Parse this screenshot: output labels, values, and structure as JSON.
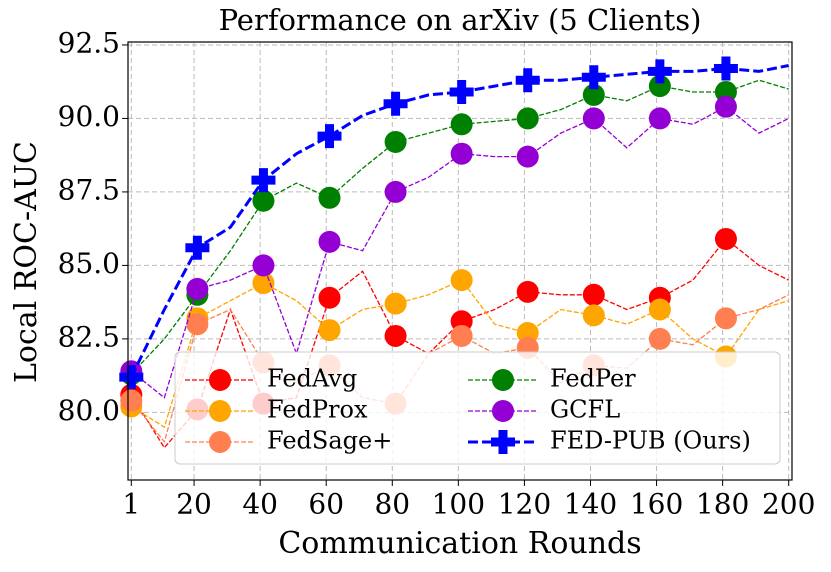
{
  "chart_data": {
    "type": "line",
    "title": "Performance on arXiv (5 Clients)",
    "x_label": "Communication Rounds",
    "y_label": "Local ROC-AUC",
    "x": [
      1,
      11,
      21,
      31,
      41,
      51,
      61,
      71,
      81,
      91,
      101,
      111,
      121,
      131,
      141,
      151,
      161,
      171,
      181,
      191,
      200
    ],
    "series": [
      {
        "name": "FedAvg",
        "color": "#ff0000",
        "marker": "circle",
        "values": [
          80.6,
          78.8,
          80.1,
          83.5,
          80.3,
          80.5,
          83.9,
          84.8,
          82.6,
          82.0,
          83.1,
          83.5,
          84.1,
          84.0,
          84.0,
          83.5,
          83.9,
          84.5,
          85.9,
          85.0,
          84.5
        ]
      },
      {
        "name": "FedProx",
        "color": "#ffa500",
        "marker": "circle",
        "values": [
          80.2,
          79.5,
          83.2,
          83.8,
          84.4,
          83.8,
          82.8,
          83.5,
          83.7,
          84.0,
          84.5,
          83.0,
          82.7,
          83.5,
          83.3,
          83.0,
          83.5,
          82.5,
          81.9,
          83.5,
          83.8
        ]
      },
      {
        "name": "FedSage+",
        "color": "#ff7f50",
        "marker": "circle",
        "values": [
          80.4,
          79.0,
          83.0,
          83.5,
          81.7,
          81.0,
          81.6,
          80.5,
          80.3,
          82.0,
          82.6,
          82.0,
          82.2,
          81.0,
          81.6,
          81.5,
          82.5,
          82.3,
          83.2,
          83.5,
          84.0
        ]
      },
      {
        "name": "FedPer",
        "color": "#008000",
        "marker": "circle",
        "values": [
          81.3,
          82.5,
          84.0,
          85.5,
          87.2,
          87.8,
          87.3,
          88.3,
          89.2,
          89.5,
          89.8,
          89.9,
          90.0,
          90.3,
          90.8,
          90.6,
          91.1,
          90.9,
          90.9,
          91.3,
          91.0
        ]
      },
      {
        "name": "GCFL",
        "color": "#9400d3",
        "marker": "circle",
        "values": [
          81.4,
          80.5,
          84.2,
          84.5,
          85.0,
          82.0,
          85.8,
          85.5,
          87.5,
          88.0,
          88.8,
          88.7,
          88.7,
          89.5,
          90.0,
          89.0,
          90.0,
          89.8,
          90.4,
          89.5,
          90.0
        ]
      },
      {
        "name": "FED-PUB (Ours)",
        "color": "#0000ff",
        "marker": "plus",
        "values": [
          81.2,
          83.5,
          85.6,
          86.3,
          87.9,
          88.8,
          89.4,
          90.1,
          90.5,
          90.8,
          90.9,
          91.1,
          91.3,
          91.3,
          91.4,
          91.5,
          91.6,
          91.6,
          91.7,
          91.6,
          91.8
        ]
      }
    ],
    "xlim": [
      0,
      201
    ],
    "xticks": [
      1,
      20,
      40,
      60,
      80,
      100,
      120,
      140,
      160,
      180,
      200
    ],
    "ylim": [
      77.7,
      92.6
    ],
    "yticks": [
      {
        "value": 80,
        "label": "80.0"
      },
      82.5,
      {
        "value": 85,
        "label": "85.0"
      },
      87.5,
      {
        "value": 90,
        "label": "90.0"
      },
      92.5
    ],
    "grid": true
  }
}
